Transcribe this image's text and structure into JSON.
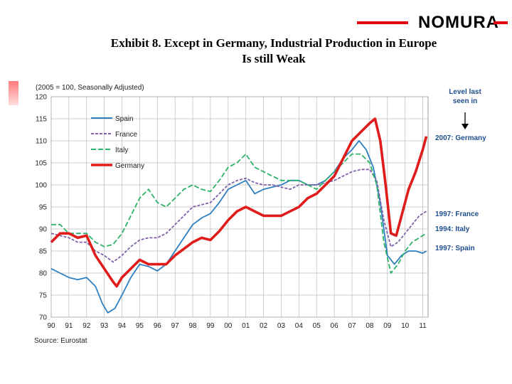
{
  "brand": {
    "name": "NOMURA",
    "accent_color": "#e60012"
  },
  "title_line1": "Exhibit 8.  Except in Germany, Industrial Production in Europe",
  "title_line2": "Is still Weak",
  "chart_data": {
    "type": "line",
    "subtitle": "(2005 = 100, Seasonally Adjusted)",
    "source": "Source: Eurostat",
    "x_ticks": [
      "90",
      "91",
      "92",
      "93",
      "94",
      "95",
      "96",
      "97",
      "98",
      "99",
      "00",
      "01",
      "02",
      "03",
      "04",
      "05",
      "06",
      "07",
      "08",
      "09",
      "10",
      "11"
    ],
    "y_ticks": [
      "70",
      "75",
      "80",
      "85",
      "90",
      "95",
      "100",
      "105",
      "110",
      "115",
      "120"
    ],
    "ylim": [
      70,
      120
    ],
    "xlim": [
      1990,
      2011.3
    ],
    "grid": true,
    "legend_position": "top-left",
    "series": [
      {
        "name": "Spain",
        "color": "#2e7fc0",
        "dash": "solid",
        "points": [
          [
            1990,
            81
          ],
          [
            1990.5,
            80
          ],
          [
            1991,
            79
          ],
          [
            1991.5,
            78.5
          ],
          [
            1992,
            79
          ],
          [
            1992.5,
            77
          ],
          [
            1992.9,
            73
          ],
          [
            1993.2,
            71
          ],
          [
            1993.6,
            72
          ],
          [
            1994,
            75
          ],
          [
            1994.5,
            79
          ],
          [
            1995,
            82
          ],
          [
            1995.5,
            81.5
          ],
          [
            1996,
            80.5
          ],
          [
            1996.5,
            82
          ],
          [
            1997,
            85
          ],
          [
            1997.5,
            88
          ],
          [
            1998,
            91
          ],
          [
            1998.5,
            92.5
          ],
          [
            1999,
            93.5
          ],
          [
            1999.5,
            96
          ],
          [
            2000,
            99
          ],
          [
            2000.5,
            100
          ],
          [
            2001,
            101
          ],
          [
            2001.5,
            98
          ],
          [
            2002,
            99
          ],
          [
            2002.5,
            99.5
          ],
          [
            2003,
            100
          ],
          [
            2003.5,
            101
          ],
          [
            2004,
            101
          ],
          [
            2004.5,
            100
          ],
          [
            2005,
            100
          ],
          [
            2005.5,
            101
          ],
          [
            2006,
            103
          ],
          [
            2006.5,
            106
          ],
          [
            2007,
            108
          ],
          [
            2007.4,
            110
          ],
          [
            2007.8,
            108
          ],
          [
            2008.2,
            104
          ],
          [
            2008.6,
            96
          ],
          [
            2009,
            84
          ],
          [
            2009.4,
            82
          ],
          [
            2009.8,
            84
          ],
          [
            2010.2,
            85
          ],
          [
            2010.6,
            85
          ],
          [
            2011,
            84.5
          ],
          [
            2011.2,
            85
          ]
        ]
      },
      {
        "name": "France",
        "color": "#8060a8",
        "dash": "dashed",
        "points": [
          [
            1990,
            89
          ],
          [
            1990.5,
            88.5
          ],
          [
            1991,
            88
          ],
          [
            1991.5,
            87
          ],
          [
            1992,
            87
          ],
          [
            1992.5,
            85
          ],
          [
            1993,
            84
          ],
          [
            1993.5,
            82.5
          ],
          [
            1994,
            84
          ],
          [
            1994.5,
            86
          ],
          [
            1995,
            87.5
          ],
          [
            1995.5,
            88
          ],
          [
            1996,
            88
          ],
          [
            1996.5,
            89
          ],
          [
            1997,
            91
          ],
          [
            1997.5,
            93
          ],
          [
            1998,
            95
          ],
          [
            1998.5,
            95.5
          ],
          [
            1999,
            96
          ],
          [
            1999.5,
            98
          ],
          [
            2000,
            100
          ],
          [
            2000.5,
            101
          ],
          [
            2001,
            101.5
          ],
          [
            2001.5,
            100.5
          ],
          [
            2002,
            100
          ],
          [
            2002.5,
            100
          ],
          [
            2003,
            99.5
          ],
          [
            2003.5,
            99
          ],
          [
            2004,
            100
          ],
          [
            2004.5,
            100
          ],
          [
            2005,
            100
          ],
          [
            2005.5,
            100.5
          ],
          [
            2006,
            101
          ],
          [
            2006.5,
            102
          ],
          [
            2007,
            103
          ],
          [
            2007.5,
            103.5
          ],
          [
            2008,
            103.5
          ],
          [
            2008.4,
            101
          ],
          [
            2008.8,
            92
          ],
          [
            2009.2,
            86
          ],
          [
            2009.6,
            87
          ],
          [
            2010,
            89
          ],
          [
            2010.4,
            91
          ],
          [
            2010.8,
            93
          ],
          [
            2011.2,
            94
          ]
        ]
      },
      {
        "name": "Italy",
        "color": "#2fb36a",
        "dash": "dashed",
        "points": [
          [
            1990,
            91
          ],
          [
            1990.5,
            91
          ],
          [
            1991,
            89
          ],
          [
            1991.5,
            89
          ],
          [
            1992,
            89
          ],
          [
            1992.5,
            87
          ],
          [
            1993,
            86
          ],
          [
            1993.5,
            86.5
          ],
          [
            1994,
            89
          ],
          [
            1994.5,
            93
          ],
          [
            1995,
            97
          ],
          [
            1995.5,
            99
          ],
          [
            1996,
            96
          ],
          [
            1996.5,
            95
          ],
          [
            1997,
            97
          ],
          [
            1997.5,
            99
          ],
          [
            1998,
            100
          ],
          [
            1998.5,
            99
          ],
          [
            1999,
            98.5
          ],
          [
            1999.5,
            101
          ],
          [
            2000,
            104
          ],
          [
            2000.5,
            105
          ],
          [
            2001,
            107
          ],
          [
            2001.5,
            104
          ],
          [
            2002,
            103
          ],
          [
            2002.5,
            102
          ],
          [
            2003,
            101
          ],
          [
            2003.5,
            101
          ],
          [
            2004,
            101
          ],
          [
            2004.5,
            100
          ],
          [
            2005,
            99
          ],
          [
            2005.5,
            101
          ],
          [
            2006,
            103
          ],
          [
            2006.5,
            105
          ],
          [
            2007,
            107
          ],
          [
            2007.5,
            107
          ],
          [
            2008,
            105
          ],
          [
            2008.4,
            100
          ],
          [
            2008.8,
            87
          ],
          [
            2009.2,
            80
          ],
          [
            2009.6,
            82
          ],
          [
            2010,
            85
          ],
          [
            2010.4,
            87
          ],
          [
            2010.8,
            88
          ],
          [
            2011.2,
            89
          ]
        ]
      },
      {
        "name": "Germany",
        "color": "#e01b1b",
        "dash": "solid",
        "points": [
          [
            1990,
            87
          ],
          [
            1990.5,
            89
          ],
          [
            1991,
            89
          ],
          [
            1991.5,
            88
          ],
          [
            1992,
            88.5
          ],
          [
            1992.5,
            84
          ],
          [
            1993,
            81
          ],
          [
            1993.5,
            78
          ],
          [
            1993.7,
            77
          ],
          [
            1994,
            79
          ],
          [
            1994.5,
            81
          ],
          [
            1995,
            83
          ],
          [
            1995.5,
            82
          ],
          [
            1996,
            82
          ],
          [
            1996.5,
            82
          ],
          [
            1997,
            84
          ],
          [
            1997.5,
            85.5
          ],
          [
            1998,
            87
          ],
          [
            1998.5,
            88
          ],
          [
            1999,
            87.5
          ],
          [
            1999.5,
            89.5
          ],
          [
            2000,
            92
          ],
          [
            2000.5,
            94
          ],
          [
            2001,
            95
          ],
          [
            2001.5,
            94
          ],
          [
            2002,
            93
          ],
          [
            2002.5,
            93
          ],
          [
            2003,
            93
          ],
          [
            2003.5,
            94
          ],
          [
            2004,
            95
          ],
          [
            2004.5,
            97
          ],
          [
            2005,
            98
          ],
          [
            2005.5,
            100
          ],
          [
            2006,
            102
          ],
          [
            2006.5,
            106
          ],
          [
            2007,
            110
          ],
          [
            2007.5,
            112
          ],
          [
            2008,
            114
          ],
          [
            2008.3,
            115
          ],
          [
            2008.6,
            110
          ],
          [
            2008.9,
            100
          ],
          [
            2009.2,
            89
          ],
          [
            2009.5,
            88.5
          ],
          [
            2009.8,
            93
          ],
          [
            2010.2,
            99
          ],
          [
            2010.6,
            103
          ],
          [
            2011,
            108
          ],
          [
            2011.2,
            111
          ]
        ]
      }
    ],
    "annotations": {
      "header": [
        "Level last",
        "seen in"
      ],
      "items": [
        {
          "label": "2007: Germany",
          "value": 111
        },
        {
          "label": "1997: France",
          "value": 94
        },
        {
          "label": "1994: Italy",
          "value": 89
        },
        {
          "label": "1997: Spain",
          "value": 85
        }
      ]
    }
  }
}
